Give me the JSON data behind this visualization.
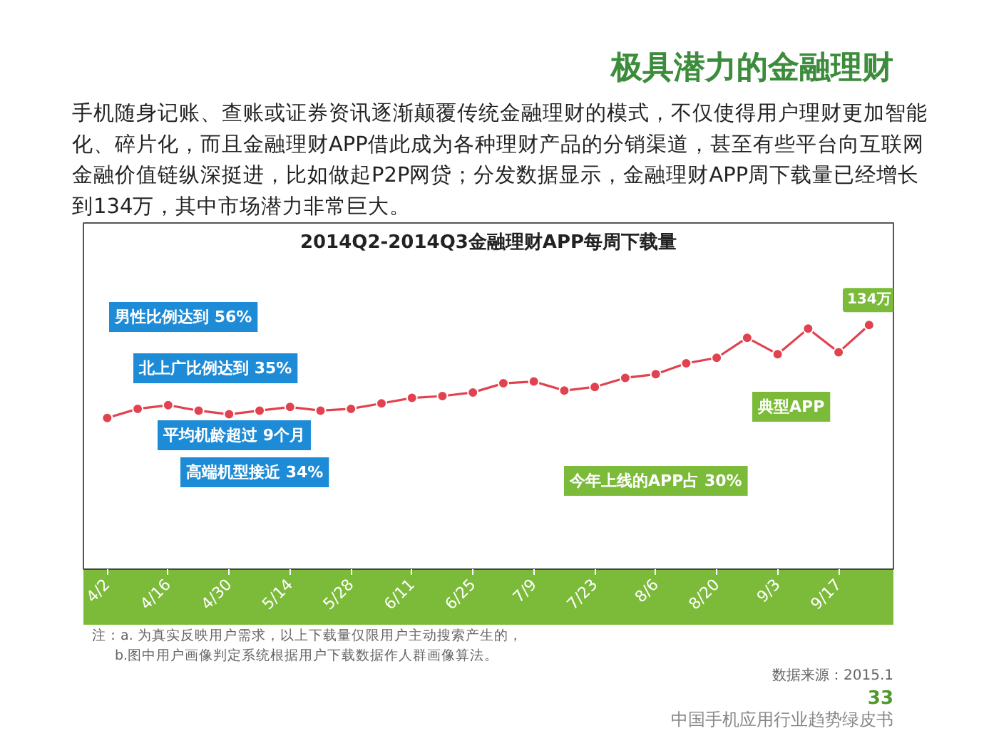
{
  "chart_data": {
    "type": "line",
    "title": "极具潜力的金融理财",
    "subtitle": "2014Q2-2014Q3金融理财APP每周下载量",
    "categories": [
      "4/2",
      null,
      "4/16",
      null,
      "4/30",
      null,
      "5/14",
      null,
      "5/28",
      null,
      "6/11",
      null,
      "6/25",
      null,
      "7/9",
      null,
      "7/23",
      null,
      "8/6",
      null,
      "8/20",
      null,
      "9/3",
      null,
      "9/17",
      null
    ],
    "series": [
      {
        "color": "#e0434f",
        "values": [
          83,
          88,
          90,
          87,
          85,
          87,
          89,
          87,
          88,
          91,
          94,
          95,
          97,
          102,
          103,
          98,
          100,
          105,
          107,
          113,
          116,
          127,
          118,
          132,
          119,
          134
        ],
        "value_labels": [
          null,
          null,
          null,
          null,
          null,
          null,
          null,
          null,
          null,
          null,
          null,
          null,
          null,
          null,
          null,
          null,
          null,
          null,
          null,
          null,
          null,
          null,
          null,
          null,
          null,
          "134万"
        ]
      }
    ],
    "ylim": [
      0,
      190
    ],
    "tick_labels": "x",
    "marker": "circle",
    "line_style": "solid",
    "annotations": [
      "手机随身记账、查账或证券资讯逐渐颠覆传统金融理财的模式，不仅使得用户理财更加智能化、碎片化，而且金融理财APP借此成为各种理财产品的分销渠道，甚至有些平台向互联网金融价值链纵深挺进，比如做起P2P网贷；分发数据显示，金融理财APP周下载量已经增长到134万，其中市场潜力非常巨大。",
      "男性比例达到 56%",
      "北上广比例达到 35%",
      "平均机龄超过 9个月",
      "高端机型接近 34%",
      "今年上线的APP占 30%",
      "典型APP",
      "注：a. 为真实反映用户需求，以上下载量仅限用户主动搜索产生的，",
      "b.图中用户画像判定系统根据用户下载数据作人群画像算法。",
      "数据来源：2015.1",
      "33",
      "中国手机应用行业趋势绿皮书"
    ]
  }
}
